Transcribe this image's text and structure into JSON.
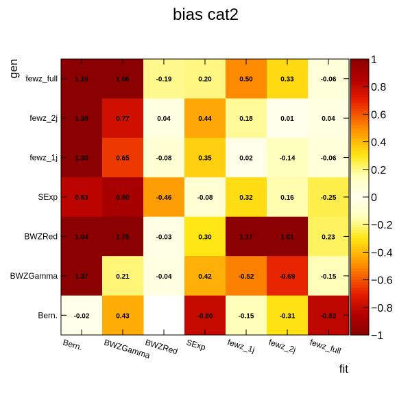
{
  "chart_data": {
    "type": "heatmap",
    "title": "bias cat2",
    "xlabel": "fit",
    "ylabel": "gen",
    "x_categories": [
      "Bern.",
      "BWZGamma",
      "BWZRed",
      "SExp",
      "fewz_1j",
      "fewz_2j",
      "fewz_full"
    ],
    "y_categories": [
      "fewz_full",
      "fewz_2j",
      "fewz_1j",
      "SExp",
      "BWZRed",
      "BWZGamma",
      "Bern."
    ],
    "values": [
      [
        1.16,
        1.06,
        -0.19,
        0.2,
        0.5,
        0.33,
        -0.06
      ],
      [
        1.38,
        0.77,
        0.04,
        0.44,
        0.18,
        0.01,
        0.04
      ],
      [
        1.3,
        0.65,
        -0.08,
        0.35,
        0.02,
        -0.14,
        -0.06
      ],
      [
        0.83,
        0.9,
        -0.46,
        -0.08,
        0.32,
        0.16,
        -0.25
      ],
      [
        1.04,
        1.75,
        -0.03,
        0.3,
        1.17,
        1.01,
        0.23
      ],
      [
        1.37,
        0.21,
        -0.04,
        0.42,
        -0.52,
        -0.69,
        -0.15
      ],
      [
        -0.02,
        0.43,
        null,
        -0.8,
        -0.15,
        -0.31,
        -0.82
      ]
    ],
    "value_labels": [
      [
        "1.16",
        "1.06",
        "-0.19",
        "0.20",
        "0.50",
        "0.33",
        "-0.06"
      ],
      [
        "1.38",
        "0.77",
        "0.04",
        "0.44",
        "0.18",
        "0.01",
        "0.04"
      ],
      [
        "1.30",
        "0.65",
        "-0.08",
        "0.35",
        "0.02",
        "-0.14",
        "-0.06"
      ],
      [
        "0.83",
        "0.90",
        "-0.46",
        "-0.08",
        "0.32",
        "0.16",
        "-0.25"
      ],
      [
        "1.04",
        "1.75",
        "-0.03",
        "0.30",
        "1.17",
        "1.01",
        "0.23"
      ],
      [
        "1.37",
        "0.21",
        "-0.04",
        "0.42",
        "-0.52",
        "-0.69",
        "-0.15"
      ],
      [
        "-0.02",
        "0.43",
        "",
        "-0.80",
        "-0.15",
        "-0.31",
        "-0.82"
      ]
    ],
    "zlim": [
      -1,
      1
    ],
    "z_ticks": [
      1,
      0.8,
      0.6,
      0.4,
      0.2,
      0,
      -0.2,
      -0.4,
      -0.6,
      -0.8,
      -1
    ],
    "z_tick_labels": [
      "1",
      "0.8",
      "0.6",
      "0.4",
      "0.2",
      "0",
      "−0.2",
      "−0.4",
      "−0.6",
      "−0.8",
      "−1"
    ],
    "colormap": "abs value: 0 = #fffff0 (cream) -> yellow -> orange -> red -> #8b0000 (dark red); |v|>1 saturates dark red",
    "legend": "colorbar right"
  }
}
